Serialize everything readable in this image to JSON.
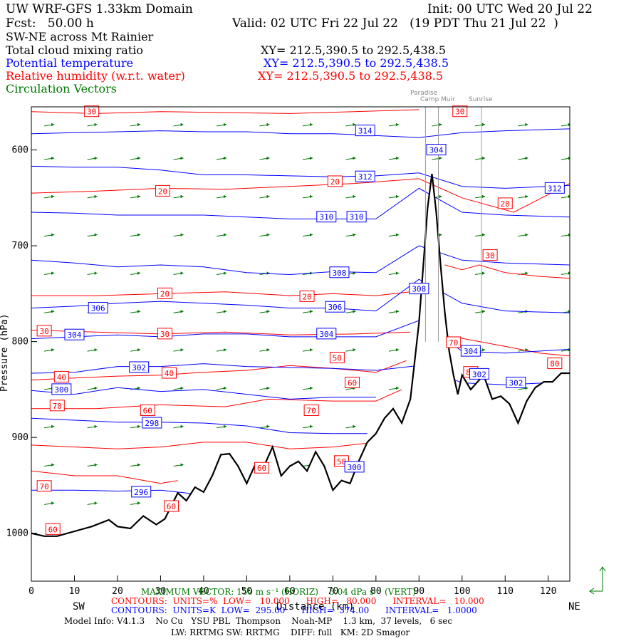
{
  "header": {
    "domain": "UW WRF-GFS 1.33km Domain",
    "init": "Init: 00 UTC Wed 20 Jul 22",
    "fcst": "Fcst:   50.00 h",
    "valid": "Valid: 02 UTC Fri 22 Jul 22   (19 PDT Thu 21 Jul 22  )",
    "section": "SW-NE across Mt Rainier"
  },
  "legend": [
    {
      "name": "Total cloud mixing ratio",
      "xy": "XY= 212.5,390.5 to 292.5,438.5",
      "color": "#000000"
    },
    {
      "name": "Potential temperature",
      "xy": "XY= 212.5,390.5 to 292.5,438.5",
      "color": "#0000ff"
    },
    {
      "name": "Relative humidity (w.r.t. water)",
      "xy": "XY= 212.5,390.5 to 292.5,438.5",
      "color": "#ff0000"
    },
    {
      "name": "Circulation Vectors",
      "xy": "",
      "color": "#007700"
    }
  ],
  "locations": [
    "Paradise",
    "Camp Muir",
    "Sunrise"
  ],
  "footer": {
    "max_vector": "MAXIMUM VECTOR: 150 m s⁻¹ (HORIZ)    3.04 dPa s⁻¹ (VERT)",
    "rh_contours": "CONTOURS:  UNITS=%  LOW=   10.000      HIGH=   80.000      INTERVAL=   10.000",
    "theta_contours": "CONTOURS:  UNITS=K  LOW=  295.00      HIGH=  374.00      INTERVAL=   1.0000",
    "model_info": "Model Info: V4.1.3    No Cu   YSU PBL  Thompson    Noah-MP    1.3 km,  37 levels,   6 sec",
    "physics": "LW: RRTMG SW: RRTMG    DIFF: full   KM: 2D Smagor"
  },
  "chart_data": {
    "type": "cross-section",
    "title": "SW-NE across Mt Rainier",
    "xlabel": "Distance (km)",
    "ylabel": "Pressure (hPa)",
    "x_end_labels": {
      "left": "SW",
      "right": "NE"
    },
    "xlim": [
      0,
      125
    ],
    "ylim": [
      1050,
      555
    ],
    "xticks": [
      0,
      10,
      20,
      30,
      40,
      50,
      60,
      70,
      80,
      90,
      100,
      110,
      120
    ],
    "yticks": [
      600,
      700,
      800,
      900,
      1000
    ],
    "ytick_labels": [
      "600",
      "700",
      "800",
      "900",
      "1000"
    ],
    "vertical_markers_km": [
      91.5,
      94.5,
      104.5
    ],
    "terrain": {
      "x": [
        0,
        3,
        6,
        10,
        14,
        18,
        20,
        23,
        26,
        29,
        31,
        34,
        36,
        38,
        40,
        42,
        44,
        46,
        48,
        50,
        52,
        54,
        56,
        58,
        60,
        62,
        64,
        66,
        68,
        70,
        72,
        74,
        76,
        78,
        80,
        82,
        84,
        86,
        88,
        89,
        90,
        91,
        92,
        93,
        94,
        95,
        96,
        97,
        98,
        99,
        100,
        102,
        103,
        105,
        107,
        109,
        111,
        113,
        115,
        117,
        119,
        121,
        123,
        125
      ],
      "p": [
        1000,
        1003,
        1003,
        998,
        993,
        986,
        993,
        995,
        982,
        991,
        985,
        958,
        966,
        952,
        957,
        940,
        918,
        917,
        930,
        948,
        928,
        930,
        910,
        940,
        930,
        925,
        935,
        915,
        930,
        955,
        945,
        948,
        925,
        905,
        896,
        880,
        870,
        885,
        860,
        820,
        780,
        720,
        660,
        625,
        665,
        720,
        770,
        810,
        835,
        855,
        835,
        850,
        845,
        835,
        860,
        857,
        865,
        885,
        862,
        848,
        842,
        842,
        833,
        833
      ]
    },
    "theta_contours": [
      {
        "level": 314,
        "x": [
          0,
          10,
          20,
          30,
          40,
          50,
          60,
          70,
          80,
          90,
          100,
          110,
          125
        ],
        "p": [
          583,
          582,
          581,
          580,
          581,
          581,
          583,
          583,
          585,
          587,
          582,
          580,
          578
        ]
      },
      {
        "level": 312,
        "x": [
          0,
          10,
          20,
          30,
          40,
          50,
          60,
          70,
          80,
          90,
          100,
          110,
          125
        ],
        "p": [
          617,
          618,
          618,
          621,
          626,
          626,
          627,
          628,
          627,
          624,
          638,
          640,
          637
        ]
      },
      {
        "level": 310,
        "x": [
          0,
          10,
          20,
          30,
          40,
          50,
          60,
          70,
          80,
          90,
          100,
          110,
          125
        ],
        "p": [
          665,
          666,
          668,
          668,
          668,
          670,
          672,
          672,
          672,
          640,
          665,
          668,
          670
        ]
      },
      {
        "level": 308,
        "x": [
          0,
          10,
          20,
          30,
          40,
          50,
          60,
          70,
          80,
          90,
          100,
          110,
          125
        ],
        "p": [
          715,
          718,
          722,
          720,
          722,
          728,
          730,
          727,
          728,
          700,
          715,
          718,
          720
        ]
      },
      {
        "level": 306,
        "x": [
          0,
          10,
          20,
          30,
          40,
          50,
          60,
          70,
          80,
          90,
          100,
          110,
          125
        ],
        "p": [
          765,
          763,
          760,
          758,
          760,
          762,
          765,
          765,
          768,
          735,
          760,
          768,
          770
        ]
      },
      {
        "level": 304,
        "x": [
          0,
          10,
          20,
          30,
          40,
          50,
          60,
          70,
          80,
          90,
          100,
          110,
          125
        ],
        "p": [
          797,
          795,
          793,
          795,
          792,
          792,
          795,
          795,
          795,
          778,
          810,
          812,
          808
        ]
      },
      {
        "level": 302,
        "x": [
          0,
          10,
          20,
          30,
          40,
          50,
          60,
          70,
          80,
          90,
          100,
          110,
          125
        ],
        "p": [
          833,
          832,
          826,
          826,
          823,
          826,
          827,
          828,
          830,
          825,
          843,
          845,
          842
        ]
      },
      {
        "level": 300,
        "x": [
          0,
          10,
          20,
          30,
          40,
          50,
          60,
          70,
          80
        ],
        "p": [
          851,
          855,
          848,
          852,
          850,
          855,
          860,
          858,
          858
        ]
      },
      {
        "level": 298,
        "x": [
          0,
          10,
          20,
          30,
          40,
          50,
          60,
          70,
          78
        ],
        "p": [
          880,
          882,
          884,
          884,
          885,
          888,
          895,
          896,
          896
        ]
      },
      {
        "level": 296,
        "x": [
          0,
          10,
          20,
          30,
          40,
          44
        ],
        "p": [
          955,
          955,
          956,
          955,
          960,
          920
        ]
      }
    ],
    "rh_contours": [
      {
        "level": 30,
        "x": [
          0,
          15,
          30,
          45,
          60,
          75,
          90
        ],
        "p": [
          560,
          562,
          560,
          561,
          562,
          560,
          558
        ]
      },
      {
        "level": 20,
        "x": [
          0,
          15,
          30,
          45,
          60,
          75,
          90,
          100,
          112,
          125
        ],
        "p": [
          645,
          643,
          640,
          641,
          638,
          635,
          630,
          650,
          665,
          635
        ]
      },
      {
        "level": 20,
        "x": [
          0,
          15,
          30,
          45,
          60,
          70,
          80,
          88
        ],
        "p": [
          752,
          752,
          750,
          748,
          752,
          750,
          752,
          748
        ]
      },
      {
        "level": 30,
        "x": [
          0,
          15,
          30,
          45,
          60,
          75,
          88
        ],
        "p": [
          788,
          790,
          792,
          790,
          793,
          792,
          790
        ]
      },
      {
        "level": 40,
        "x": [
          0,
          10,
          20,
          30,
          40,
          50,
          60,
          70,
          80,
          87
        ],
        "p": [
          840,
          838,
          836,
          835,
          832,
          830,
          825,
          828,
          832,
          820
        ]
      },
      {
        "level": 50,
        "x": [
          0,
          15,
          30,
          45,
          55,
          70,
          80,
          86
        ],
        "p": [
          870,
          870,
          866,
          868,
          860,
          862,
          862,
          850
        ]
      },
      {
        "level": 60,
        "x": [
          0,
          10,
          20,
          30,
          40,
          50,
          60,
          70,
          80,
          84
        ],
        "p": [
          908,
          910,
          912,
          910,
          905,
          905,
          912,
          910,
          905,
          880
        ]
      },
      {
        "level": 70,
        "x": [
          0,
          10,
          20,
          30,
          34
        ],
        "p": [
          935,
          940,
          940,
          948,
          945
        ]
      },
      {
        "level": 30,
        "x": [
          96,
          100,
          104,
          110,
          118,
          125
        ],
        "p": [
          720,
          725,
          720,
          728,
          732,
          734
        ]
      },
      {
        "level": 70,
        "x": [
          98,
          104,
          110,
          118,
          125
        ],
        "p": [
          795,
          800,
          805,
          812,
          815
        ]
      }
    ],
    "theta_labels": [
      {
        "text": "314",
        "x": 77.5,
        "p": 580
      },
      {
        "text": "312",
        "x": 77.5,
        "p": 628
      },
      {
        "text": "312",
        "x": 121.5,
        "p": 640
      },
      {
        "text": "310",
        "x": 68.5,
        "p": 670
      },
      {
        "text": "310",
        "x": 75.5,
        "p": 670
      },
      {
        "text": "308",
        "x": 71.5,
        "p": 728
      },
      {
        "text": "308",
        "x": 90,
        "p": 745
      },
      {
        "text": "306",
        "x": 15.5,
        "p": 765
      },
      {
        "text": "306",
        "x": 70.5,
        "p": 764
      },
      {
        "text": "304",
        "x": 10,
        "p": 793
      },
      {
        "text": "304",
        "x": 68.5,
        "p": 792
      },
      {
        "text": "304",
        "x": 102,
        "p": 810
      },
      {
        "text": "302",
        "x": 25,
        "p": 827
      },
      {
        "text": "302",
        "x": 104,
        "p": 834
      },
      {
        "text": "302",
        "x": 112.5,
        "p": 843
      },
      {
        "text": "300",
        "x": 7,
        "p": 850
      },
      {
        "text": "298",
        "x": 28,
        "p": 885
      },
      {
        "text": "300",
        "x": 75,
        "p": 931
      },
      {
        "text": "296",
        "x": 25.5,
        "p": 957
      },
      {
        "text": "304",
        "x": 94,
        "p": 600
      }
    ],
    "rh_labels": [
      {
        "text": "30",
        "x": 14,
        "p": 560
      },
      {
        "text": "30",
        "x": 99.5,
        "p": 560
      },
      {
        "text": "20",
        "x": 30.5,
        "p": 643
      },
      {
        "text": "20",
        "x": 70.5,
        "p": 633
      },
      {
        "text": "20",
        "x": 110,
        "p": 656
      },
      {
        "text": "20",
        "x": 31,
        "p": 750
      },
      {
        "text": "20",
        "x": 64,
        "p": 753
      },
      {
        "text": "30",
        "x": 106.5,
        "p": 710
      },
      {
        "text": "30",
        "x": 3,
        "p": 789
      },
      {
        "text": "30",
        "x": 31,
        "p": 792
      },
      {
        "text": "40",
        "x": 32,
        "p": 833
      },
      {
        "text": "40",
        "x": 7,
        "p": 837
      },
      {
        "text": "50",
        "x": 71,
        "p": 817
      },
      {
        "text": "60",
        "x": 74.5,
        "p": 843
      },
      {
        "text": "70",
        "x": 6,
        "p": 867
      },
      {
        "text": "60",
        "x": 27,
        "p": 872
      },
      {
        "text": "70",
        "x": 65,
        "p": 872
      },
      {
        "text": "70",
        "x": 98,
        "p": 801
      },
      {
        "text": "80",
        "x": 102,
        "p": 832
      },
      {
        "text": "80",
        "x": 121.5,
        "p": 823
      },
      {
        "text": "50",
        "x": 72,
        "p": 925
      },
      {
        "text": "60",
        "x": 53.5,
        "p": 932
      },
      {
        "text": "70",
        "x": 3,
        "p": 951
      },
      {
        "text": "60",
        "x": 32.5,
        "p": 972
      },
      {
        "text": "60",
        "x": 5,
        "p": 996
      },
      {
        "text": "30",
        "x": 94,
        "p": 600
      }
    ],
    "wind_vectors": {
      "x": [
        3,
        13,
        23,
        33,
        43,
        53,
        63,
        73,
        83,
        93,
        103,
        113,
        123
      ],
      "p": [
        575,
        610,
        650,
        690,
        730,
        770,
        810,
        850,
        890,
        930,
        970
      ],
      "u": 1.0,
      "w": 0.15
    }
  }
}
